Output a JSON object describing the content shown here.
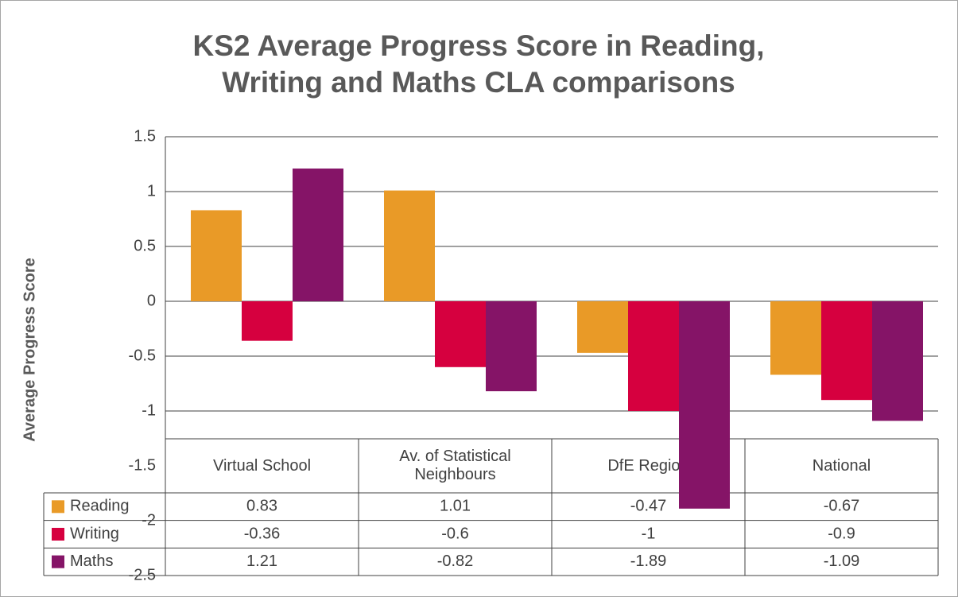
{
  "chart_data": {
    "type": "bar",
    "title": "KS2 Average Progress Score in Reading, Writing and Maths CLA comparisons",
    "y_label": "Average Progress Score",
    "categories": [
      "Virtual School",
      "Av. of Statistical Neighbours",
      "DfE Region",
      "National"
    ],
    "series": [
      {
        "name": "Reading",
        "color": "#e99a27",
        "values": [
          0.83,
          1.01,
          -0.47,
          -0.67
        ]
      },
      {
        "name": "Writing",
        "color": "#d6003f",
        "values": [
          -0.36,
          -0.6,
          -1,
          -0.9
        ]
      },
      {
        "name": "Maths",
        "color": "#851467",
        "values": [
          1.21,
          -0.82,
          -1.89,
          -1.09
        ]
      }
    ],
    "ylim": [
      -2.5,
      1.5
    ],
    "yticks": [
      -2.5,
      -2,
      -1.5,
      -1,
      -0.5,
      0,
      0.5,
      1,
      1.5
    ],
    "grid": true,
    "data_table": true
  }
}
